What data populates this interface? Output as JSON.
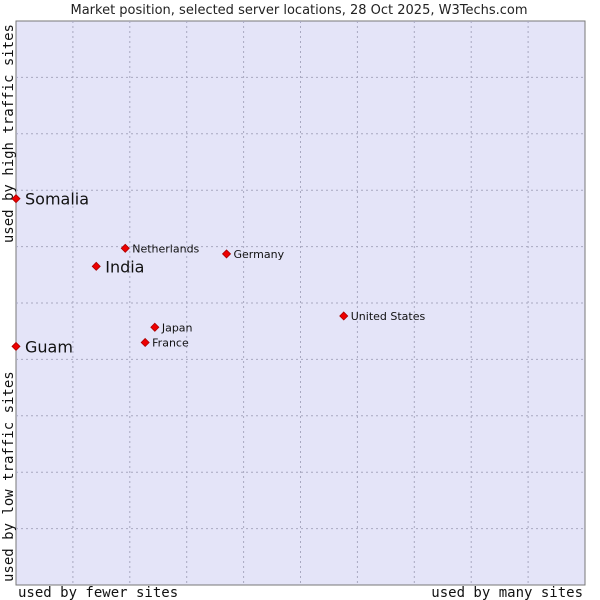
{
  "chart_data": {
    "type": "scatter",
    "title": "Market position, selected server locations, 28 Oct 2025, W3Techs.com",
    "xlabel_left": "used by fewer sites",
    "xlabel_right": "used by many sites",
    "ylabel_top": "used by high traffic sites",
    "ylabel_bottom": "used by low traffic sites",
    "xlim": [
      0,
      10
    ],
    "ylim": [
      0,
      10
    ],
    "grid": true,
    "colors": {
      "plot_background": "#e4e4f8",
      "grid": "#a8a8c0",
      "point": "#ee0000",
      "point_stroke": "#aa0000"
    },
    "points": [
      {
        "name": "Somalia",
        "x": 0.0,
        "y": 6.85,
        "emphasis": true
      },
      {
        "name": "Netherlands",
        "x": 1.92,
        "y": 5.97,
        "emphasis": false
      },
      {
        "name": "Germany",
        "x": 3.7,
        "y": 5.87,
        "emphasis": false
      },
      {
        "name": "India",
        "x": 1.41,
        "y": 5.65,
        "emphasis": true
      },
      {
        "name": "United States",
        "x": 5.76,
        "y": 4.77,
        "emphasis": false
      },
      {
        "name": "Japan",
        "x": 2.44,
        "y": 4.57,
        "emphasis": false
      },
      {
        "name": "France",
        "x": 2.27,
        "y": 4.3,
        "emphasis": false
      },
      {
        "name": "Guam",
        "x": 0.0,
        "y": 4.23,
        "emphasis": true
      }
    ]
  }
}
